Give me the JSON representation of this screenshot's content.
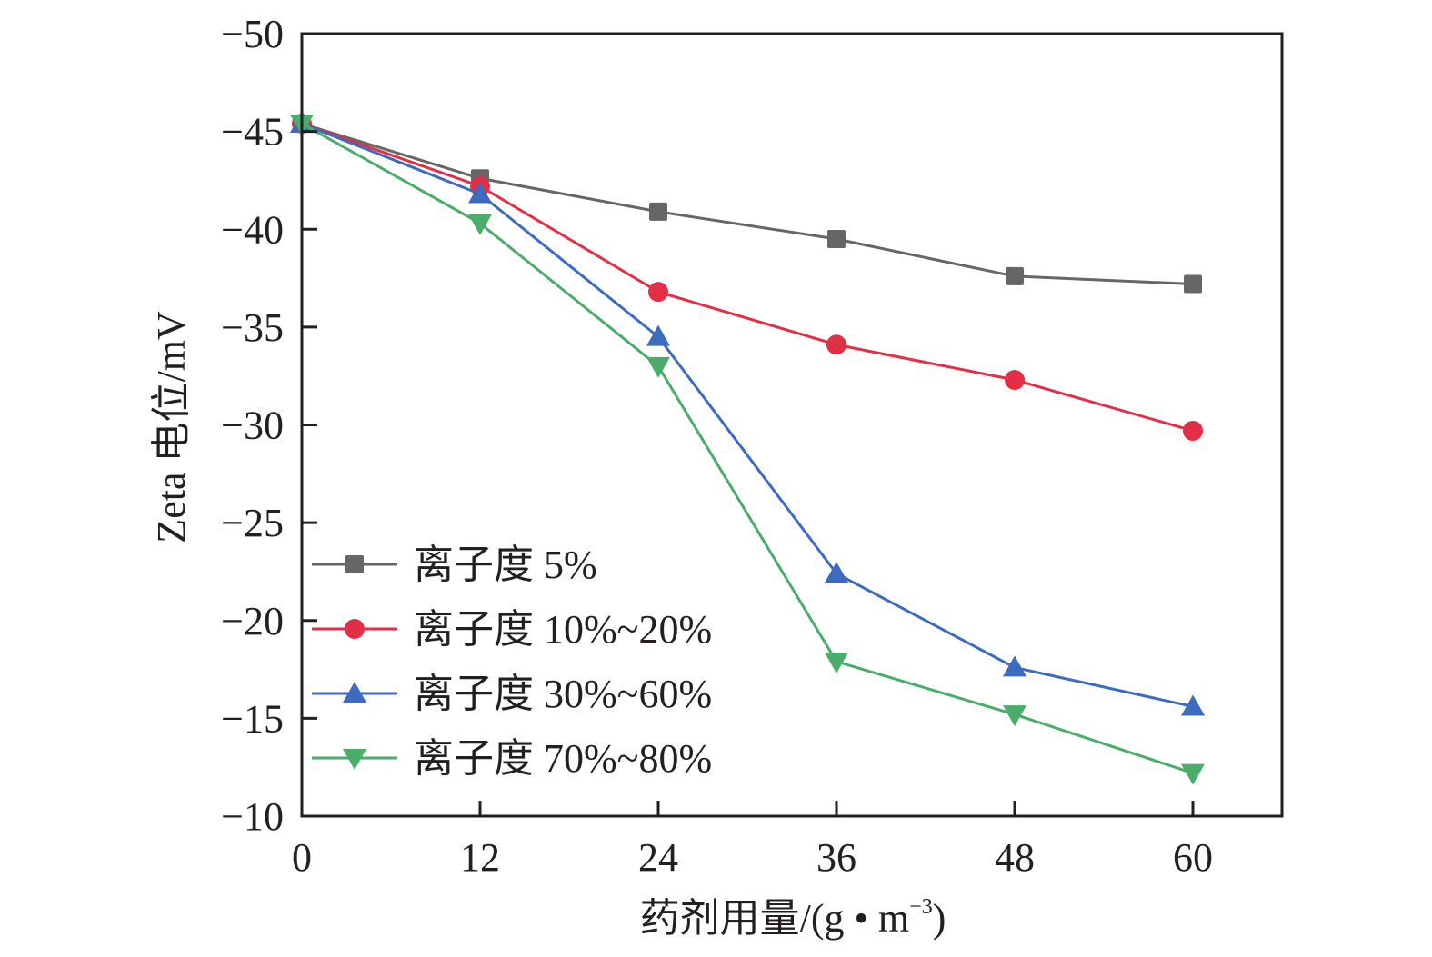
{
  "chart_data": {
    "type": "line",
    "title": "",
    "xlabel": "药剂用量/(g • m⁻³)",
    "xlabel_main": "药剂用量/(g • m",
    "xlabel_sup": "−3",
    "xlabel_close": ")",
    "ylabel": "Zeta 电位/mV",
    "x": [
      0,
      12,
      24,
      36,
      48,
      60
    ],
    "xlim": [
      0,
      66
    ],
    "ylim": [
      -50,
      -10
    ],
    "y_inverted": true,
    "xticks": [
      "0",
      "12",
      "24",
      "36",
      "48",
      "60"
    ],
    "yticks": [
      "−50",
      "−45",
      "−40",
      "−35",
      "−30",
      "−25",
      "−20",
      "−15",
      "−10"
    ],
    "ytick_values": [
      -50,
      -45,
      -40,
      -35,
      -30,
      -25,
      -20,
      -15,
      -10
    ],
    "grid": false,
    "legend_position": "lower-left",
    "series": [
      {
        "name": "离子度 5%",
        "color": "#666666",
        "marker": "square",
        "values": [
          -45.4,
          -42.6,
          -40.9,
          -39.5,
          -37.6,
          -37.2
        ]
      },
      {
        "name": "离子度 10%~20%",
        "color": "#e32f45",
        "marker": "circle",
        "values": [
          -45.4,
          -42.2,
          -36.8,
          -34.1,
          -32.3,
          -29.7
        ]
      },
      {
        "name": "离子度 30%~60%",
        "color": "#3d6bbf",
        "marker": "triangle-up",
        "values": [
          -45.4,
          -41.8,
          -34.5,
          -22.4,
          -17.6,
          -15.6
        ]
      },
      {
        "name": "离子度 70%~80%",
        "color": "#4aad6a",
        "marker": "triangle-down",
        "values": [
          -45.4,
          -40.3,
          -33.0,
          -17.9,
          -15.2,
          -12.2
        ]
      }
    ]
  }
}
